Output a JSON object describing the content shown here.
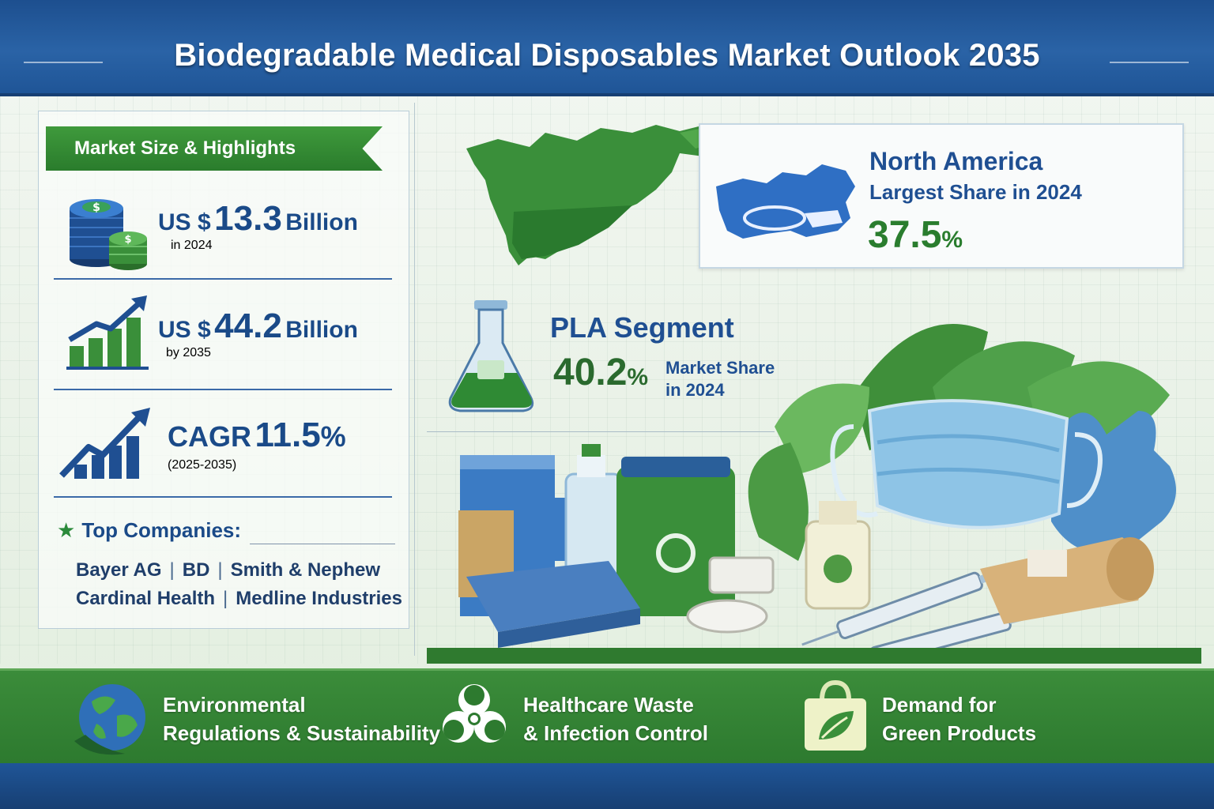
{
  "title": "Biodegradable Medical Disposables Market Outlook 2035",
  "highlights": {
    "heading": "Market Size & Highlights",
    "market_2024": {
      "prefix": "US $",
      "value": "13.3",
      "suffix": "Billion",
      "sub": "in 2024"
    },
    "market_2035": {
      "prefix": "US $",
      "value": "44.2",
      "suffix": "Billion",
      "sub": "by 2035"
    },
    "cagr": {
      "label": "CAGR",
      "value": "11.5",
      "unit": "%",
      "sub": "(2025-2035)"
    }
  },
  "companies": {
    "heading": "Top Companies:",
    "line1": [
      "Bayer AG",
      "BD",
      "Smith & Nephew"
    ],
    "line2": [
      "Cardinal Health",
      "Medline Industries"
    ]
  },
  "north_america": {
    "title": "North America",
    "subtitle": "Largest Share in 2024",
    "value": "37.5",
    "unit": "%"
  },
  "pla": {
    "title": "PLA Segment",
    "value": "40.2",
    "unit": "%",
    "label_line1": "Market Share",
    "label_line2": "in 2024"
  },
  "drivers": [
    {
      "line1": "Environmental",
      "line2": "Regulations & Sustainability",
      "icon": "globe-icon"
    },
    {
      "line1": "Healthcare Waste",
      "line2": "& Infection Control",
      "icon": "biohazard-icon"
    },
    {
      "line1": "Demand for",
      "line2": "Green Products",
      "icon": "shopping-bag-leaf-icon"
    }
  ],
  "colors": {
    "header_blue": "#1f5597",
    "accent_green": "#2d7a2f",
    "text_blue": "#1a4a88"
  }
}
